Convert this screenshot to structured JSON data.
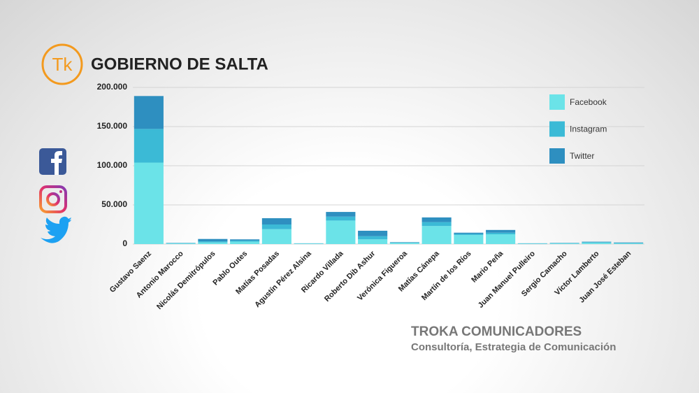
{
  "brand": {
    "logo": "Tk",
    "name": "TROKA COMUNICADORES",
    "tagline": "Consultoría, Estrategia de Comunicación"
  },
  "chart_data": {
    "type": "stacked_bar",
    "title": "GOBIERNO DE SALTA",
    "categories": [
      "Gustavo Saenz",
      "Antonio Marocco",
      "Nicolás Demitrópulos",
      "Pablo Outes",
      "Matías Posadas",
      "Agustín Pérez Alsina",
      "Ricardo Villada",
      "Roberto Dib Ashur",
      "Verónica Figueroa",
      "Matías Cánepa",
      "Martín de los Ríos",
      "Mario Peña",
      "Juan Manuel Pulleiro",
      "Sergio Camacho",
      "Víctor Lamberto",
      "Juan José Esteban"
    ],
    "series": [
      {
        "name": "Facebook",
        "color": "#6be3e8",
        "values": [
          104000,
          800,
          2000,
          3000,
          19000,
          600,
          30000,
          6000,
          1500,
          23000,
          11500,
          12500,
          500,
          800,
          1500,
          800
        ]
      },
      {
        "name": "Instagram",
        "color": "#3bbad6",
        "values": [
          43000,
          400,
          1500,
          1500,
          6000,
          300,
          5000,
          4000,
          500,
          5000,
          1500,
          2000,
          300,
          400,
          1000,
          700
        ]
      },
      {
        "name": "Twitter",
        "color": "#2e8fc0",
        "values": [
          42000,
          300,
          3000,
          1500,
          8000,
          100,
          6000,
          7000,
          500,
          6000,
          1500,
          3500,
          200,
          300,
          500,
          500
        ]
      }
    ],
    "ylim": [
      0,
      200000
    ],
    "yticks": [
      0,
      {
        "value": 50000,
        "label": "50.000"
      },
      {
        "value": 100000,
        "label": "100.000"
      },
      {
        "value": 150000,
        "label": "150.000"
      },
      {
        "value": 200000,
        "label": "200.000"
      }
    ],
    "grid": true,
    "legend": "top-right"
  }
}
